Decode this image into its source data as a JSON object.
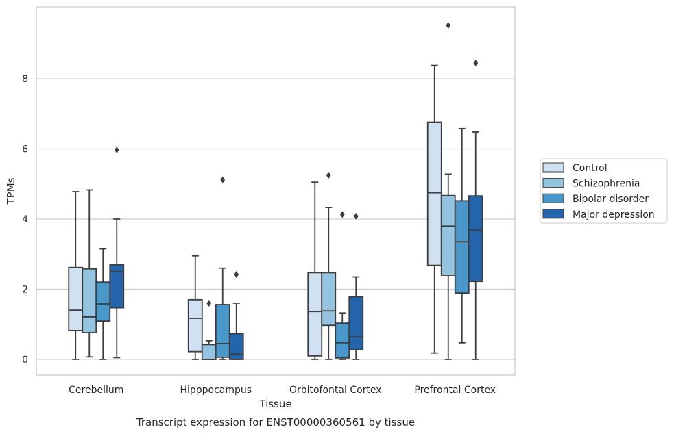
{
  "chart_data": {
    "type": "boxplot",
    "title": "",
    "caption": "Transcript expression for ENST00000360561 by tissue",
    "xlabel": "Tissue",
    "ylabel": "TPMs",
    "ylim": [
      -0.45,
      10.05
    ],
    "yticks": [
      0,
      2,
      4,
      6,
      8
    ],
    "grid": "horizontal",
    "legend_position": "right",
    "categories": [
      "Cerebellum",
      "Hipppocampus",
      "Orbitofontal Cortex",
      "Prefrontal Cortex"
    ],
    "series": [
      {
        "name": "Control",
        "color": "#d0e1f2",
        "boxes": [
          {
            "whislo": 0.0,
            "q1": 0.82,
            "med": 1.4,
            "q3": 2.62,
            "whishi": 4.78,
            "fliers": []
          },
          {
            "whislo": 0.0,
            "q1": 0.22,
            "med": 1.17,
            "q3": 1.7,
            "whishi": 2.95,
            "fliers": []
          },
          {
            "whislo": 0.0,
            "q1": 0.1,
            "med": 1.36,
            "q3": 2.47,
            "whishi": 5.05,
            "fliers": []
          },
          {
            "whislo": 0.18,
            "q1": 2.68,
            "med": 4.75,
            "q3": 6.76,
            "whishi": 8.38,
            "fliers": []
          }
        ]
      },
      {
        "name": "Schizophrenia",
        "color": "#94c4df",
        "boxes": [
          {
            "whislo": 0.07,
            "q1": 0.76,
            "med": 1.21,
            "q3": 2.58,
            "whishi": 4.83,
            "fliers": []
          },
          {
            "whislo": 0.0,
            "q1": 0.0,
            "med": 0.0,
            "q3": 0.42,
            "whishi": 0.53,
            "fliers": [
              1.6
            ]
          },
          {
            "whislo": 0.0,
            "q1": 0.97,
            "med": 1.38,
            "q3": 2.47,
            "whishi": 4.33,
            "fliers": [
              5.25
            ]
          },
          {
            "whislo": 0.0,
            "q1": 2.4,
            "med": 3.8,
            "q3": 4.67,
            "whishi": 5.28,
            "fliers": [
              9.52
            ]
          }
        ]
      },
      {
        "name": "Bipolar disorder",
        "color": "#4a98c9",
        "boxes": [
          {
            "whislo": 0.0,
            "q1": 1.09,
            "med": 1.58,
            "q3": 2.2,
            "whishi": 3.15,
            "fliers": []
          },
          {
            "whislo": 0.0,
            "q1": 0.06,
            "med": 0.45,
            "q3": 1.56,
            "whishi": 2.6,
            "fliers": [
              5.12
            ]
          },
          {
            "whislo": 0.0,
            "q1": 0.04,
            "med": 0.47,
            "q3": 1.03,
            "whishi": 1.32,
            "fliers": [
              4.13
            ]
          },
          {
            "whislo": 0.47,
            "q1": 1.89,
            "med": 3.35,
            "q3": 4.52,
            "whishi": 6.58,
            "fliers": []
          }
        ]
      },
      {
        "name": "Major depression",
        "color": "#2464ab",
        "boxes": [
          {
            "whislo": 0.05,
            "q1": 1.47,
            "med": 2.5,
            "q3": 2.7,
            "whishi": 4.0,
            "fliers": [
              5.97
            ]
          },
          {
            "whislo": 0.0,
            "q1": 0.0,
            "med": 0.15,
            "q3": 0.73,
            "whishi": 1.6,
            "fliers": [
              2.42
            ]
          },
          {
            "whislo": 0.0,
            "q1": 0.27,
            "med": 0.64,
            "q3": 1.78,
            "whishi": 2.35,
            "fliers": [
              4.08
            ]
          },
          {
            "whislo": 0.0,
            "q1": 2.22,
            "med": 3.68,
            "q3": 4.66,
            "whishi": 6.48,
            "fliers": [
              8.45
            ]
          }
        ]
      }
    ]
  }
}
